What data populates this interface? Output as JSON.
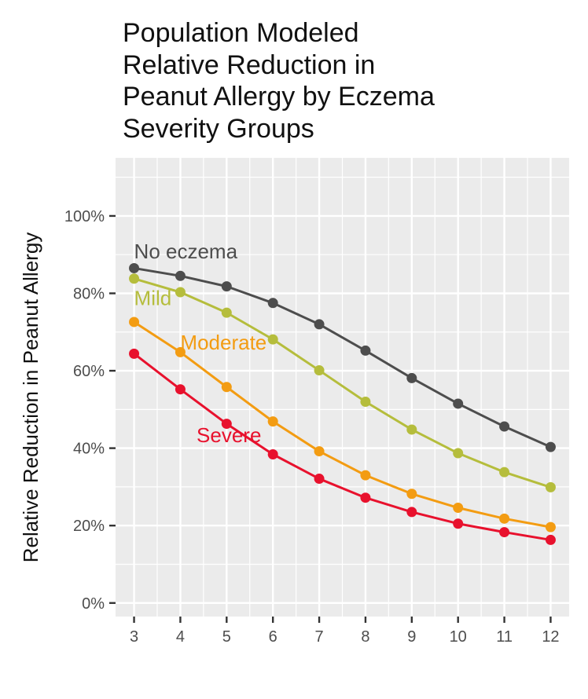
{
  "title": "Population Modeled\nRelative Reduction in\nPeanut Allergy by Eczema\nSeverity Groups",
  "chart_data": {
    "type": "line",
    "title": "Population Modeled Relative Reduction in Peanut Allergy by Eczema Severity Groups",
    "xlabel": "",
    "ylabel": "Relative Reduction in Peanut Allergy",
    "x": [
      3,
      4,
      5,
      6,
      7,
      8,
      9,
      10,
      11,
      12
    ],
    "xlim": [
      2.6,
      12.4
    ],
    "ylim": [
      -3.5,
      115
    ],
    "yticks": [
      0,
      20,
      40,
      60,
      80,
      100
    ],
    "ytick_labels": [
      "0%",
      "20%",
      "40%",
      "60%",
      "80%",
      "100%"
    ],
    "grid": true,
    "legend": "none",
    "series": [
      {
        "name": "No eczema",
        "color": "#4d4d4d",
        "values": [
          86.5,
          84.5,
          81.8,
          77.5,
          72,
          65.2,
          58.1,
          51.5,
          45.6,
          40.3
        ]
      },
      {
        "name": "Mild",
        "color": "#b5bd3c",
        "values": [
          83.8,
          80.3,
          75,
          68.1,
          60.1,
          52,
          44.8,
          38.7,
          33.8,
          29.9
        ]
      },
      {
        "name": "Moderate",
        "color": "#f39c12",
        "values": [
          72.6,
          64.8,
          55.8,
          46.9,
          39.2,
          33,
          28.2,
          24.6,
          21.8,
          19.6
        ]
      },
      {
        "name": "Severe",
        "color": "#e8112d",
        "values": [
          64.4,
          55.2,
          46.3,
          38.4,
          32.1,
          27.2,
          23.5,
          20.5,
          18.3,
          16.3
        ]
      }
    ]
  }
}
